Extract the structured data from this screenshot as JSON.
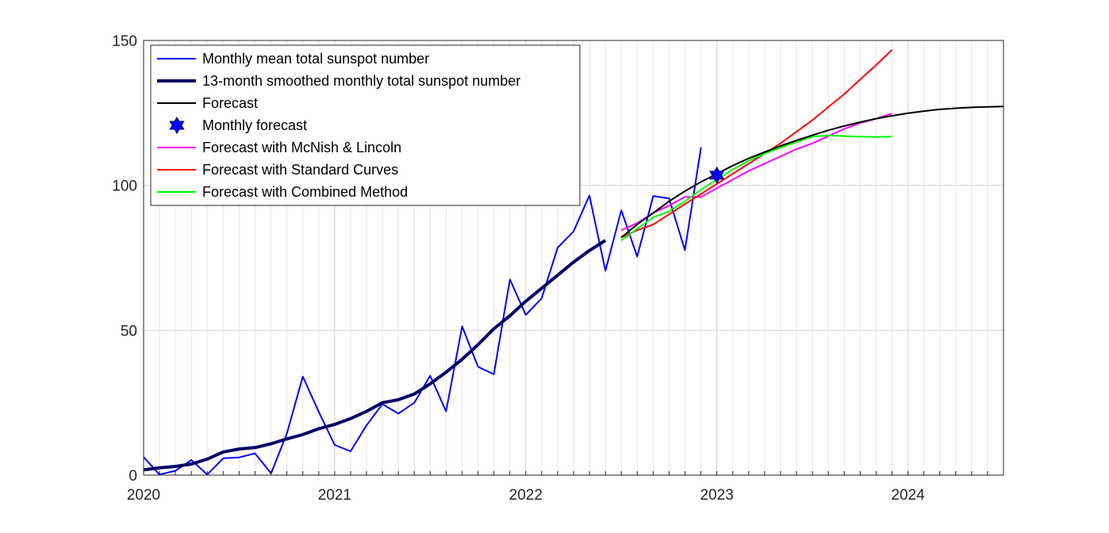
{
  "chart_data": {
    "type": "line",
    "title": "",
    "xlabel": "",
    "ylabel": "",
    "xlim": [
      2020.0,
      2024.5
    ],
    "ylim": [
      0,
      150
    ],
    "x_ticks": [
      2020,
      2021,
      2022,
      2023,
      2024
    ],
    "x_tick_labels": [
      "2020",
      "2021",
      "2022",
      "2023",
      "2024"
    ],
    "y_ticks": [
      0,
      50,
      100,
      150
    ],
    "y_tick_labels": [
      "0",
      "50",
      "100",
      "150"
    ],
    "grid": "on (major + monthly minor vertical lines)",
    "legend_position": "top-left",
    "series": [
      {
        "name": "Monthly mean total sunspot number",
        "color": "#0000ff",
        "style": "thin line",
        "x": [
          2020.0,
          2020.083,
          2020.167,
          2020.25,
          2020.333,
          2020.417,
          2020.5,
          2020.583,
          2020.667,
          2020.75,
          2020.833,
          2020.917,
          2021.0,
          2021.083,
          2021.167,
          2021.25,
          2021.333,
          2021.417,
          2021.5,
          2021.583,
          2021.667,
          2021.75,
          2021.833,
          2021.917,
          2022.0,
          2022.083,
          2022.167,
          2022.25,
          2022.333,
          2022.417,
          2022.5,
          2022.583,
          2022.667,
          2022.75,
          2022.833,
          2022.917
        ],
        "y": [
          6.2,
          0.2,
          1.5,
          5.2,
          0.2,
          5.8,
          6.1,
          7.5,
          0.6,
          14.4,
          34.0,
          21.8,
          10.4,
          8.2,
          17.2,
          24.5,
          21.2,
          25.0,
          34.3,
          22.0,
          51.3,
          37.4,
          34.8,
          67.5,
          55.3,
          61.0,
          78.5,
          84.1,
          96.5,
          70.5,
          91.4,
          75.4,
          96.3,
          95.5,
          77.6,
          113.1
        ]
      },
      {
        "name": "13-month smoothed monthly total sunspot number",
        "color": "#000066",
        "style": "thick line",
        "x": [
          2020.0,
          2020.083,
          2020.167,
          2020.25,
          2020.333,
          2020.417,
          2020.5,
          2020.583,
          2020.667,
          2020.75,
          2020.833,
          2020.917,
          2021.0,
          2021.083,
          2021.167,
          2021.25,
          2021.333,
          2021.417,
          2021.5,
          2021.583,
          2021.667,
          2021.75,
          2021.833,
          2021.917,
          2022.0,
          2022.083,
          2022.167,
          2022.25,
          2022.333,
          2022.417
        ],
        "y": [
          1.8,
          2.5,
          3.0,
          3.8,
          5.5,
          8.0,
          9.0,
          9.5,
          10.8,
          12.5,
          14.0,
          16.0,
          17.5,
          19.5,
          22.0,
          25.0,
          26.0,
          28.0,
          31.5,
          35.5,
          40.0,
          45.0,
          50.5,
          55.0,
          60.0,
          64.5,
          69.0,
          73.5,
          77.5,
          81.0
        ]
      },
      {
        "name": "Forecast",
        "color": "#000000",
        "style": "line",
        "x": [
          2022.5,
          2022.583,
          2022.667,
          2022.75,
          2022.833,
          2022.917,
          2023.0,
          2023.083,
          2023.167,
          2023.25,
          2023.333,
          2023.417,
          2023.5,
          2023.583,
          2023.667,
          2023.75,
          2023.833,
          2023.917,
          2024.0,
          2024.083,
          2024.167,
          2024.25,
          2024.333,
          2024.417,
          2024.5
        ],
        "y": [
          82.0,
          86.5,
          90.5,
          94.5,
          98.0,
          101.2,
          104.0,
          106.8,
          109.3,
          111.5,
          113.6,
          115.5,
          117.3,
          119.0,
          120.5,
          121.8,
          123.0,
          124.0,
          124.9,
          125.6,
          126.2,
          126.6,
          126.9,
          127.1,
          127.2
        ]
      },
      {
        "name": "Monthly forecast",
        "color": "#0000ff",
        "style": "hexagram marker",
        "x": [
          2023.0
        ],
        "y": [
          103.5
        ]
      },
      {
        "name": "Forecast with McNish & Lincoln",
        "color": "#ff00ff",
        "style": "line",
        "x": [
          2022.5,
          2022.583,
          2022.667,
          2022.75,
          2022.833,
          2022.917,
          2023.0,
          2023.083,
          2023.167,
          2023.25,
          2023.333,
          2023.417,
          2023.5,
          2023.583,
          2023.667,
          2023.75,
          2023.833,
          2023.917
        ],
        "y": [
          84.5,
          87.0,
          90.5,
          93.0,
          96.0,
          96.0,
          99.0,
          102.0,
          105.0,
          107.5,
          110.0,
          112.5,
          114.5,
          117.0,
          119.5,
          121.5,
          123.0,
          124.8
        ]
      },
      {
        "name": "Forecast with Standard Curves",
        "color": "#ff0000",
        "style": "line",
        "x": [
          2022.5,
          2022.583,
          2022.667,
          2022.75,
          2022.833,
          2022.917,
          2023.0,
          2023.083,
          2023.167,
          2023.25,
          2023.333,
          2023.417,
          2023.5,
          2023.583,
          2023.667,
          2023.75,
          2023.833,
          2023.917
        ],
        "y": [
          82.0,
          84.5,
          86.5,
          90.0,
          93.5,
          97.0,
          100.5,
          104.0,
          107.5,
          111.0,
          114.5,
          118.5,
          122.5,
          127.0,
          131.5,
          136.5,
          141.5,
          146.8
        ]
      },
      {
        "name": "Forecast with Combined Method",
        "color": "#00ff00",
        "style": "line",
        "x": [
          2022.5,
          2022.583,
          2022.667,
          2022.75,
          2022.833,
          2022.917,
          2023.0,
          2023.083,
          2023.167,
          2023.25,
          2023.333,
          2023.417,
          2023.5,
          2023.583,
          2023.667,
          2023.75,
          2023.833,
          2023.917
        ],
        "y": [
          81.0,
          85.0,
          89.0,
          91.0,
          94.5,
          98.5,
          102.0,
          105.5,
          108.5,
          111.0,
          113.0,
          115.0,
          116.8,
          117.2,
          117.0,
          116.8,
          116.7,
          116.8
        ]
      }
    ]
  }
}
